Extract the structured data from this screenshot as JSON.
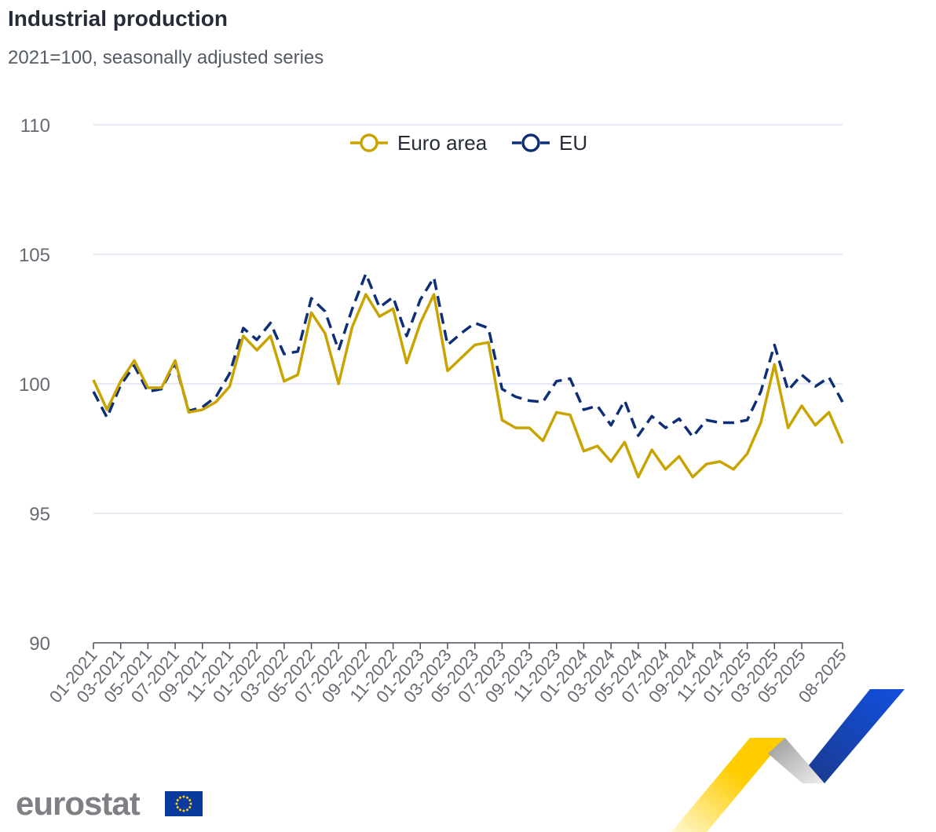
{
  "title": "Industrial production",
  "subtitle": "2021=100, seasonally adjusted series",
  "logo": {
    "text": "eurostat"
  },
  "chart_data": {
    "type": "line",
    "title": "Industrial production",
    "subtitle": "2021=100, seasonally adjusted series",
    "xlabel": "",
    "ylabel": "",
    "ylim": [
      90,
      110
    ],
    "yticks": [
      "90",
      "95",
      "100",
      "105",
      "110"
    ],
    "grid": true,
    "legend": "top-center",
    "x": [
      "01-2021",
      "02-2021",
      "03-2021",
      "04-2021",
      "05-2021",
      "06-2021",
      "07-2021",
      "08-2021",
      "09-2021",
      "10-2021",
      "11-2021",
      "12-2021",
      "01-2022",
      "02-2022",
      "03-2022",
      "04-2022",
      "05-2022",
      "06-2022",
      "07-2022",
      "08-2022",
      "09-2022",
      "10-2022",
      "11-2022",
      "12-2022",
      "01-2023",
      "02-2023",
      "03-2023",
      "04-2023",
      "05-2023",
      "06-2023",
      "07-2023",
      "08-2023",
      "09-2023",
      "10-2023",
      "11-2023",
      "12-2023",
      "01-2024",
      "02-2024",
      "03-2024",
      "04-2024",
      "05-2024",
      "06-2024",
      "07-2024",
      "08-2024",
      "09-2024",
      "10-2024",
      "11-2024",
      "12-2024",
      "01-2025",
      "02-2025",
      "03-2025",
      "04-2025",
      "05-2025",
      "06-2025",
      "07-2025",
      "08-2025"
    ],
    "xticks": [
      "01-2021",
      "03-2021",
      "05-2021",
      "07-2021",
      "09-2021",
      "11-2021",
      "01-2022",
      "03-2022",
      "05-2022",
      "07-2022",
      "09-2022",
      "11-2022",
      "01-2023",
      "03-2023",
      "05-2023",
      "07-2023",
      "09-2023",
      "11-2023",
      "01-2024",
      "03-2024",
      "05-2024",
      "07-2024",
      "09-2024",
      "11-2024",
      "01-2025",
      "03-2025",
      "05-2025",
      "08-2025"
    ],
    "series": [
      {
        "name": "Euro area",
        "color": "#c9a400",
        "dash": false,
        "values": [
          100.15,
          99.0,
          100.1,
          100.9,
          99.85,
          99.85,
          100.9,
          98.9,
          99.0,
          99.3,
          99.9,
          101.85,
          101.3,
          101.85,
          100.1,
          100.35,
          102.75,
          101.95,
          100.0,
          102.2,
          103.45,
          102.6,
          102.9,
          100.8,
          102.35,
          103.45,
          100.5,
          101.0,
          101.5,
          101.6,
          98.6,
          98.3,
          98.3,
          97.8,
          98.9,
          98.8,
          97.4,
          97.6,
          97.0,
          97.75,
          96.4,
          97.45,
          96.7,
          97.2,
          96.4,
          96.9,
          97.0,
          96.7,
          97.3,
          98.5,
          100.75,
          98.3,
          99.15,
          98.4,
          98.9,
          97.7
        ]
      },
      {
        "name": "EU",
        "color": "#0e2f76",
        "dash": true,
        "values": [
          99.7,
          98.7,
          99.95,
          100.7,
          99.7,
          99.8,
          100.8,
          98.95,
          99.1,
          99.5,
          100.4,
          102.15,
          101.7,
          102.35,
          101.15,
          101.25,
          103.3,
          102.8,
          101.3,
          102.9,
          104.25,
          102.95,
          103.35,
          101.85,
          103.25,
          104.1,
          101.5,
          101.95,
          102.35,
          102.15,
          99.8,
          99.5,
          99.35,
          99.3,
          100.1,
          100.2,
          99.0,
          99.15,
          98.4,
          99.35,
          98.0,
          98.75,
          98.3,
          98.65,
          97.95,
          98.6,
          98.5,
          98.5,
          98.6,
          99.7,
          101.5,
          99.75,
          100.35,
          99.9,
          100.25,
          99.3
        ]
      }
    ]
  }
}
